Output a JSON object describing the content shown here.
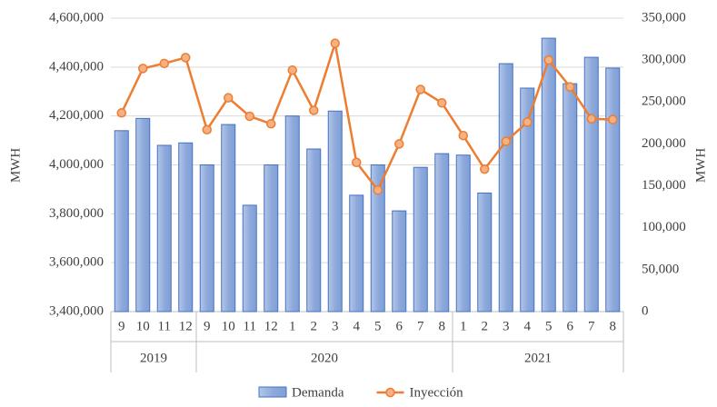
{
  "chart_data": {
    "type": "bar_line",
    "y_label": "MWH",
    "y2_label": "MWH",
    "category_groups": [
      {
        "label": "2019",
        "categories": [
          "9",
          "10",
          "11",
          "12"
        ]
      },
      {
        "label": "2020",
        "categories": [
          "9",
          "10",
          "11",
          "12",
          "1",
          "2",
          "3",
          "4",
          "5",
          "6",
          "7",
          "8"
        ]
      },
      {
        "label": "2021",
        "categories": [
          "1",
          "2",
          "3",
          "4",
          "5",
          "6",
          "7",
          "8"
        ]
      }
    ],
    "series": [
      {
        "name": "Demanda",
        "type": "bar",
        "color": "#8faadc",
        "edge_color": "#4472c4",
        "axis": "y",
        "values": [
          4140000,
          4190000,
          4080000,
          4090000,
          4000000,
          4165000,
          3835000,
          4000000,
          4200000,
          4065000,
          4220000,
          3876000,
          4000000,
          3812000,
          3990000,
          4046000,
          4040000,
          3885000,
          4414000,
          4314000,
          4518000,
          4332000,
          4440000,
          4396000
        ]
      },
      {
        "name": "Inyección",
        "type": "line",
        "color": "#ed7d31",
        "marker_color": "#f4b183",
        "axis": "y2",
        "values": [
          237000,
          290000,
          296000,
          303000,
          217000,
          255000,
          233000,
          224000,
          288000,
          240000,
          320000,
          178000,
          145000,
          200000,
          265000,
          249000,
          210000,
          170000,
          203000,
          226000,
          300000,
          268000,
          230000,
          229000
        ]
      }
    ],
    "ylim": [
      3400000,
      4600000
    ],
    "yticks": [
      {
        "value": 3400000,
        "label": "3,400,000"
      },
      {
        "value": 3600000,
        "label": "3,600,000"
      },
      {
        "value": 3800000,
        "label": "3,800,000"
      },
      {
        "value": 4000000,
        "label": "4,000,000"
      },
      {
        "value": 4200000,
        "label": "4,200,000"
      },
      {
        "value": 4400000,
        "label": "4,400,000"
      },
      {
        "value": 4600000,
        "label": "4,600,000"
      }
    ],
    "y2lim": [
      0,
      350000
    ],
    "y2ticks": [
      0,
      {
        "value": 50000,
        "label": "50,000"
      },
      {
        "value": 100000,
        "label": "100,000"
      },
      {
        "value": 150000,
        "label": "150,000"
      },
      {
        "value": 200000,
        "label": "200,000"
      },
      {
        "value": 250000,
        "label": "250,000"
      },
      {
        "value": 300000,
        "label": "300,000"
      },
      {
        "value": 350000,
        "label": "350,000"
      }
    ],
    "grid": true,
    "legend": "bottom"
  }
}
